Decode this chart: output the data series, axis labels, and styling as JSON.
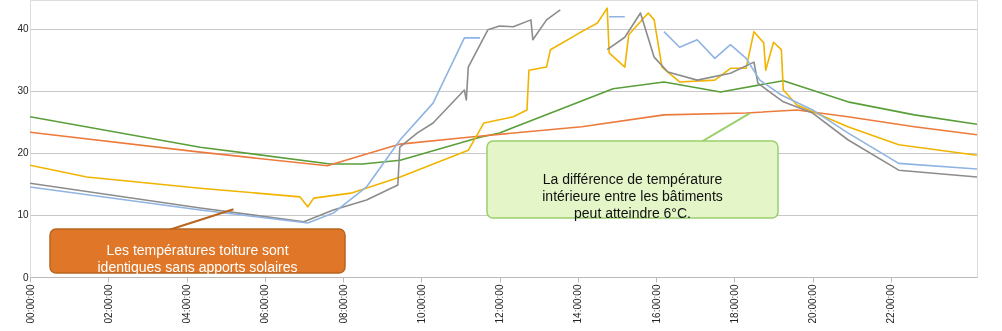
{
  "chart_data": {
    "type": "line",
    "xlim": [
      0,
      24.2
    ],
    "ylim": [
      0,
      44.6
    ],
    "xticks": [
      {
        "value": 0,
        "label": "00:00:00"
      },
      {
        "value": 2,
        "label": "02:00:00"
      },
      {
        "value": 4,
        "label": "04:00:00"
      },
      {
        "value": 6,
        "label": "06:00:00"
      },
      {
        "value": 8,
        "label": "08:00:00"
      },
      {
        "value": 10,
        "label": "10:00:00"
      },
      {
        "value": 12,
        "label": "12:00:00"
      },
      {
        "value": 14,
        "label": "14:00:00"
      },
      {
        "value": 16,
        "label": "16:00:00"
      },
      {
        "value": 18,
        "label": "18:00:00"
      },
      {
        "value": 20,
        "label": "20:00:00"
      },
      {
        "value": 22,
        "label": "22:00:00"
      }
    ],
    "yticks": [
      0,
      10,
      20,
      30,
      40
    ],
    "grid": "y",
    "marker": "none",
    "line_style": "solid",
    "series": [
      {
        "color": "#5a9e3a",
        "x": [
          0,
          4.35,
          7.67,
          8.5,
          9.46,
          11.5,
          12.0,
          14.9,
          16.2,
          17.65,
          19.25,
          20.9,
          22.6,
          24.2
        ],
        "values": [
          25.8,
          20.9,
          18.2,
          18.2,
          18.8,
          22.5,
          23.2,
          30.3,
          31.4,
          29.8,
          31.6,
          28.2,
          26.1,
          24.6
        ]
      },
      {
        "color": "#ec7a3c",
        "x": [
          0,
          4.35,
          7.6,
          8.6,
          9.46,
          11.2,
          14.1,
          16.2,
          18.3,
          19.6,
          20.9,
          22.6,
          24.2
        ],
        "values": [
          23.3,
          20.1,
          17.9,
          19.8,
          21.4,
          22.5,
          24.2,
          26.1,
          26.4,
          26.9,
          25.8,
          24.2,
          22.9
        ]
      },
      {
        "color": "#f0b400",
        "x": [
          0,
          1.45,
          4.35,
          6.9,
          7.1,
          7.25,
          8.2,
          9.46,
          11.2,
          11.6,
          12.35,
          12.7,
          12.75,
          13.2,
          13.3,
          14.1,
          14.5,
          14.75,
          14.8,
          15.2,
          15.3,
          15.8,
          15.95,
          16.15,
          16.6,
          17.5,
          17.9,
          18.3,
          18.5,
          18.75,
          18.8,
          19.0,
          19.2,
          19.25,
          19.6,
          20.9,
          22.2,
          24.2
        ],
        "values": [
          18.0,
          16.1,
          14.3,
          12.9,
          11.3,
          12.7,
          13.5,
          16.1,
          20.4,
          24.8,
          25.8,
          26.9,
          33.3,
          33.8,
          36.6,
          39.5,
          40.9,
          43.3,
          36.1,
          33.8,
          39.0,
          42.5,
          41.4,
          33.8,
          31.4,
          31.7,
          33.6,
          33.6,
          39.5,
          37.7,
          33.3,
          37.8,
          36.6,
          30.1,
          27.7,
          24.2,
          21.3,
          19.6
        ]
      },
      {
        "color": "#8c8c8c",
        "x": [
          0,
          4.35,
          7.0,
          7.75,
          8.6,
          9.4,
          9.45,
          9.9,
          10.3,
          11.1,
          11.15,
          11.2,
          11.7,
          12.0,
          12.35,
          12.8,
          12.85,
          13.2,
          13.55,
          14.1,
          14.6,
          14.75,
          15.2,
          15.6,
          15.95,
          16.3,
          17.05,
          17.9,
          18.5,
          18.6,
          19.25,
          20.0,
          20.9,
          22.2,
          24.2
        ],
        "values": [
          15.1,
          11.1,
          8.9,
          10.8,
          12.4,
          14.8,
          20.9,
          23.2,
          24.8,
          30.1,
          28.5,
          33.8,
          39.8,
          40.4,
          40.3,
          41.4,
          38.2,
          41.4,
          43.0,
          null,
          null,
          36.6,
          38.6,
          42.5,
          35.4,
          33.0,
          31.7,
          32.8,
          34.6,
          31.2,
          28.2,
          26.4,
          22.1,
          17.2,
          16.1
        ]
      },
      {
        "color": "#8fb4e3",
        "x": [
          0,
          4.35,
          7.1,
          7.75,
          8.6,
          9.46,
          10.3,
          11.1,
          11.5,
          11.75,
          14.6,
          14.8,
          15.2,
          15.4,
          15.95,
          16.2,
          16.6,
          17.05,
          17.5,
          17.9,
          18.3,
          18.65,
          19.2,
          20.0,
          20.9,
          22.2,
          24.2
        ],
        "values": [
          14.5,
          10.8,
          8.7,
          10.3,
          14.5,
          22.1,
          28.0,
          38.5,
          38.5,
          null,
          null,
          41.9,
          41.9,
          null,
          null,
          39.5,
          37.0,
          38.2,
          35.2,
          37.4,
          35.2,
          31.7,
          29.3,
          26.9,
          23.2,
          18.3,
          17.4
        ]
      }
    ],
    "annotations": [
      {
        "text": "Les températures toiture sont\nidentiques sans apports solaires",
        "x": 5.2,
        "y": 10.9
      },
      {
        "text": "La différence  de température\nintérieure entre les bâtiments\npeut atteindre 6°C.",
        "x": 18.4,
        "y": 26.4
      }
    ]
  }
}
